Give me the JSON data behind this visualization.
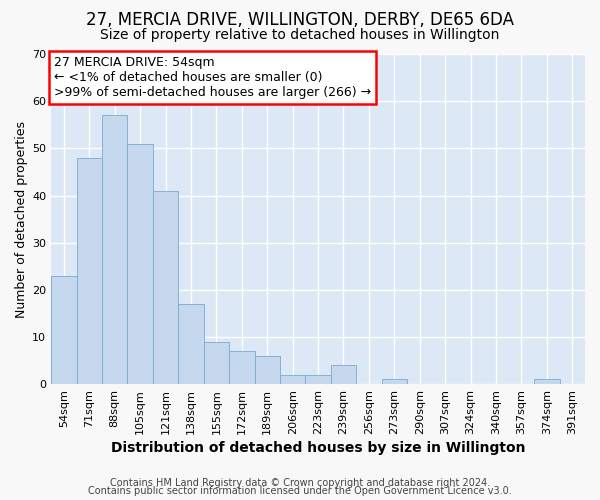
{
  "title": "27, MERCIA DRIVE, WILLINGTON, DERBY, DE65 6DA",
  "subtitle": "Size of property relative to detached houses in Willington",
  "xlabel": "Distribution of detached houses by size in Willington",
  "ylabel": "Number of detached properties",
  "bar_color": "#c5d8ee",
  "bar_edge_color": "#7aaad0",
  "categories": [
    "54sqm",
    "71sqm",
    "88sqm",
    "105sqm",
    "121sqm",
    "138sqm",
    "155sqm",
    "172sqm",
    "189sqm",
    "206sqm",
    "223sqm",
    "239sqm",
    "256sqm",
    "273sqm",
    "290sqm",
    "307sqm",
    "324sqm",
    "340sqm",
    "357sqm",
    "374sqm",
    "391sqm"
  ],
  "values": [
    23,
    48,
    57,
    51,
    41,
    17,
    9,
    7,
    6,
    2,
    2,
    4,
    0,
    1,
    0,
    0,
    0,
    0,
    0,
    1,
    0
  ],
  "ylim": [
    0,
    70
  ],
  "yticks": [
    0,
    10,
    20,
    30,
    40,
    50,
    60,
    70
  ],
  "annotation_line1": "27 MERCIA DRIVE: 54sqm",
  "annotation_line2": "← <1% of detached houses are smaller (0)",
  "annotation_line3": ">99% of semi-detached houses are larger (266) →",
  "footnote1": "Contains HM Land Registry data © Crown copyright and database right 2024.",
  "footnote2": "Contains public sector information licensed under the Open Government Licence v3.0.",
  "fig_bg_color": "#f8f8f8",
  "plot_bg_color": "#dce8f5",
  "grid_color": "#ffffff",
  "title_fontsize": 12,
  "subtitle_fontsize": 10,
  "xlabel_fontsize": 10,
  "ylabel_fontsize": 9,
  "tick_fontsize": 8,
  "ann_fontsize": 9,
  "footnote_fontsize": 7
}
